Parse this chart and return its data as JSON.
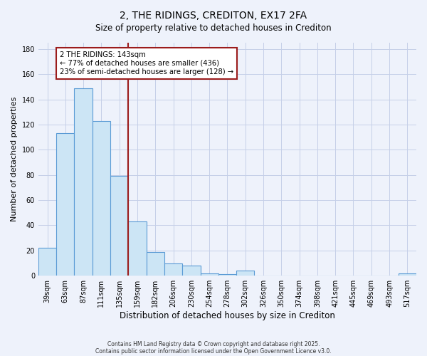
{
  "title": "2, THE RIDINGS, CREDITON, EX17 2FA",
  "subtitle": "Size of property relative to detached houses in Crediton",
  "xlabel": "Distribution of detached houses by size in Crediton",
  "ylabel": "Number of detached properties",
  "categories": [
    "39sqm",
    "63sqm",
    "87sqm",
    "111sqm",
    "135sqm",
    "159sqm",
    "182sqm",
    "206sqm",
    "230sqm",
    "254sqm",
    "278sqm",
    "302sqm",
    "326sqm",
    "350sqm",
    "374sqm",
    "398sqm",
    "421sqm",
    "445sqm",
    "469sqm",
    "493sqm",
    "517sqm"
  ],
  "values": [
    22,
    113,
    149,
    123,
    79,
    43,
    19,
    10,
    8,
    2,
    1,
    4,
    0,
    0,
    0,
    0,
    0,
    0,
    0,
    0,
    2
  ],
  "bar_color": "#cce5f5",
  "bar_edge_color": "#5b9bd5",
  "background_color": "#eef2fb",
  "grid_color": "#c5cfe8",
  "vline_x_bar_index": 4.5,
  "vline_color": "#9b1c1c",
  "annotation_text_line1": "2 THE RIDINGS: 143sqm",
  "annotation_text_line2": "← 77% of detached houses are smaller (436)",
  "annotation_text_line3": "23% of semi-detached houses are larger (128) →",
  "annotation_box_edge_color": "#9b1c1c",
  "ylim": [
    0,
    185
  ],
  "yticks": [
    0,
    20,
    40,
    60,
    80,
    100,
    120,
    140,
    160,
    180
  ],
  "footnote1": "Contains HM Land Registry data © Crown copyright and database right 2025.",
  "footnote2": "Contains public sector information licensed under the Open Government Licence v3.0."
}
